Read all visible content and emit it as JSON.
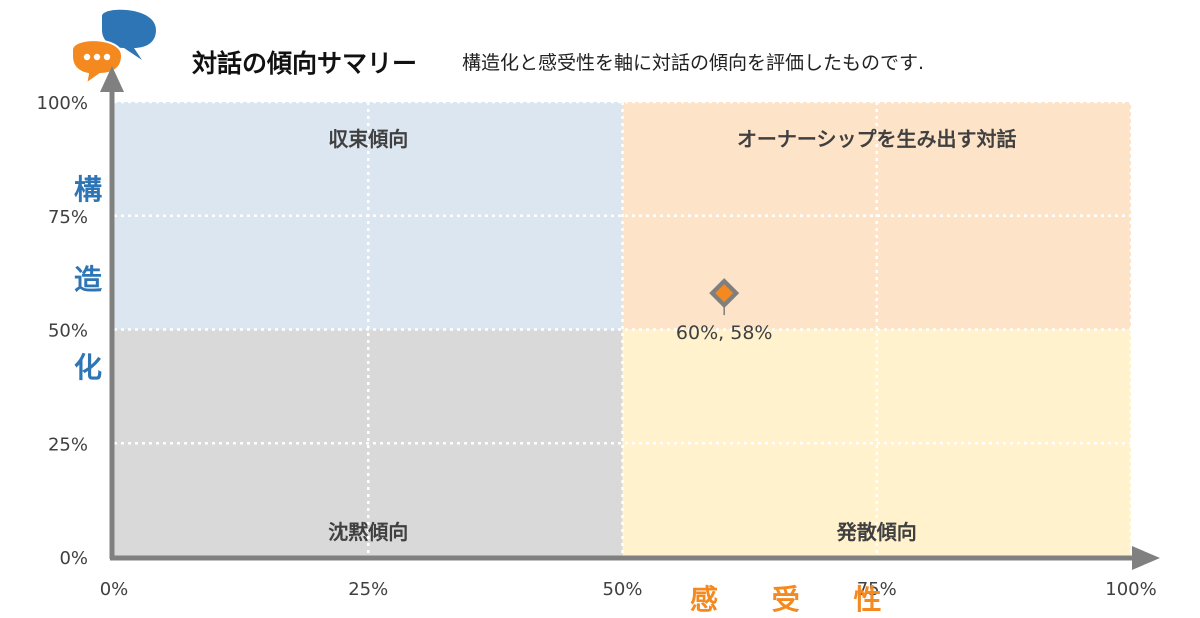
{
  "header": {
    "title": "対話の傾向サマリー",
    "subtitle": "構造化と感受性を軸に対話の傾向を評価したものです."
  },
  "axes": {
    "y_chars": [
      "構",
      "造",
      "化"
    ],
    "x_label": "感 受 性"
  },
  "chart_data": {
    "type": "scatter",
    "x": [
      60
    ],
    "y": [
      58
    ],
    "point_labels": [
      "60%, 58%"
    ],
    "xlim": [
      0,
      100
    ],
    "ylim": [
      0,
      100
    ],
    "xticks": [
      {
        "value": 0,
        "label": "0%"
      },
      {
        "value": 25,
        "label": "25%"
      },
      {
        "value": 50,
        "label": "50%"
      },
      {
        "value": 75,
        "label": "75%"
      },
      {
        "value": 100,
        "label": "100%"
      }
    ],
    "yticks": [
      {
        "value": 0,
        "label": "0%"
      },
      {
        "value": 25,
        "label": "25%"
      },
      {
        "value": 50,
        "label": "50%"
      },
      {
        "value": 75,
        "label": "75%"
      },
      {
        "value": 100,
        "label": "100%"
      }
    ],
    "quadrants": [
      {
        "name": "top-left",
        "label": "収束傾向",
        "x": [
          0,
          50
        ],
        "y": [
          50,
          100
        ],
        "color": "#dce6f1"
      },
      {
        "name": "top-right",
        "label": "オーナーシップを生み出す対話",
        "x": [
          50,
          100
        ],
        "y": [
          50,
          100
        ],
        "color": "#fde4c8"
      },
      {
        "name": "bottom-left",
        "label": "沈黙傾向",
        "x": [
          0,
          50
        ],
        "y": [
          0,
          50
        ],
        "color": "#d9d9d9"
      },
      {
        "name": "bottom-right",
        "label": "発散傾向",
        "x": [
          50,
          100
        ],
        "y": [
          0,
          50
        ],
        "color": "#fff2cc"
      }
    ],
    "grid": true,
    "colors": {
      "marker_fill": "#f4891f",
      "marker_stroke": "#7f7f7f",
      "axis": "#808080",
      "grid": "#ffffff"
    }
  }
}
